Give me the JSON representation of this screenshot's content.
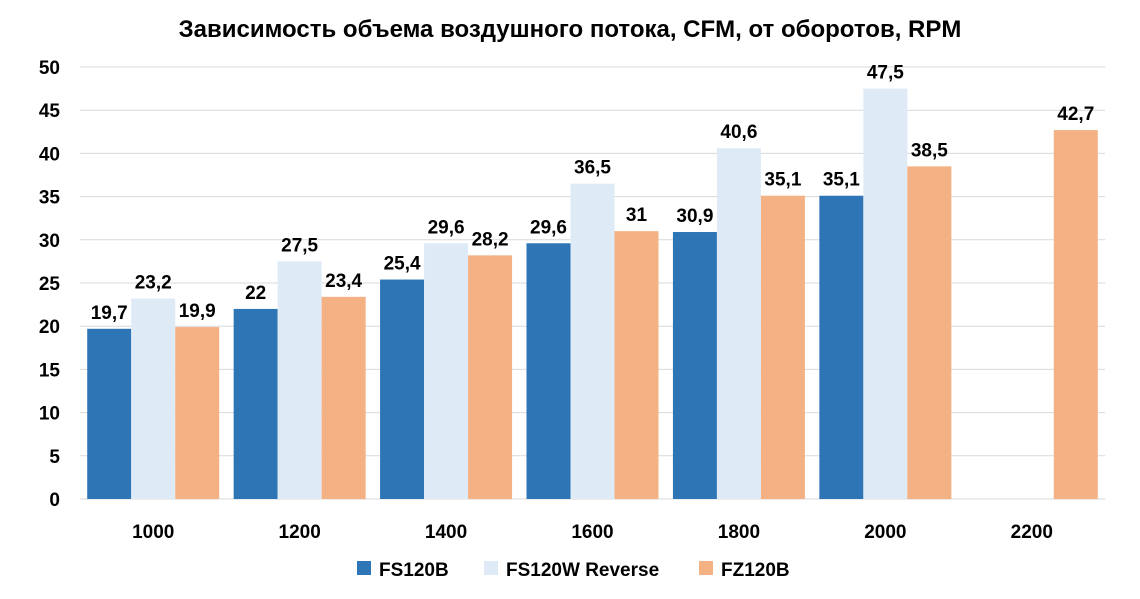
{
  "chart_data": {
    "type": "bar",
    "title": "Зависимость объема воздушного потока, CFM, от оборотов, RPM",
    "categories": [
      "1000",
      "1200",
      "1400",
      "1600",
      "1800",
      "2000",
      "2200"
    ],
    "series": [
      {
        "name": "FS120B",
        "color": "#2e75b6",
        "values": [
          19.7,
          22,
          25.4,
          29.6,
          30.9,
          35.1,
          null
        ],
        "labels": [
          "19,7",
          "22",
          "25,4",
          "29,6",
          "30,9",
          "35,1",
          ""
        ]
      },
      {
        "name": "FS120W Reverse",
        "color": "#deebf7",
        "values": [
          23.2,
          27.5,
          29.6,
          36.5,
          40.6,
          47.5,
          null
        ],
        "labels": [
          "23,2",
          "27,5",
          "29,6",
          "36,5",
          "40,6",
          "47,5",
          ""
        ]
      },
      {
        "name": "FZ120B",
        "color": "#f4b183",
        "values": [
          19.9,
          23.4,
          28.2,
          31,
          35.1,
          38.5,
          42.7
        ],
        "labels": [
          "19,9",
          "23,4",
          "28,2",
          "31",
          "35,1",
          "38,5",
          "42,7"
        ]
      }
    ],
    "ylim": [
      0,
      50
    ],
    "yticks": [
      "0",
      "5",
      "10",
      "15",
      "20",
      "25",
      "30",
      "35",
      "40",
      "45",
      "50"
    ],
    "grid": true,
    "legend_position": "bottom"
  }
}
